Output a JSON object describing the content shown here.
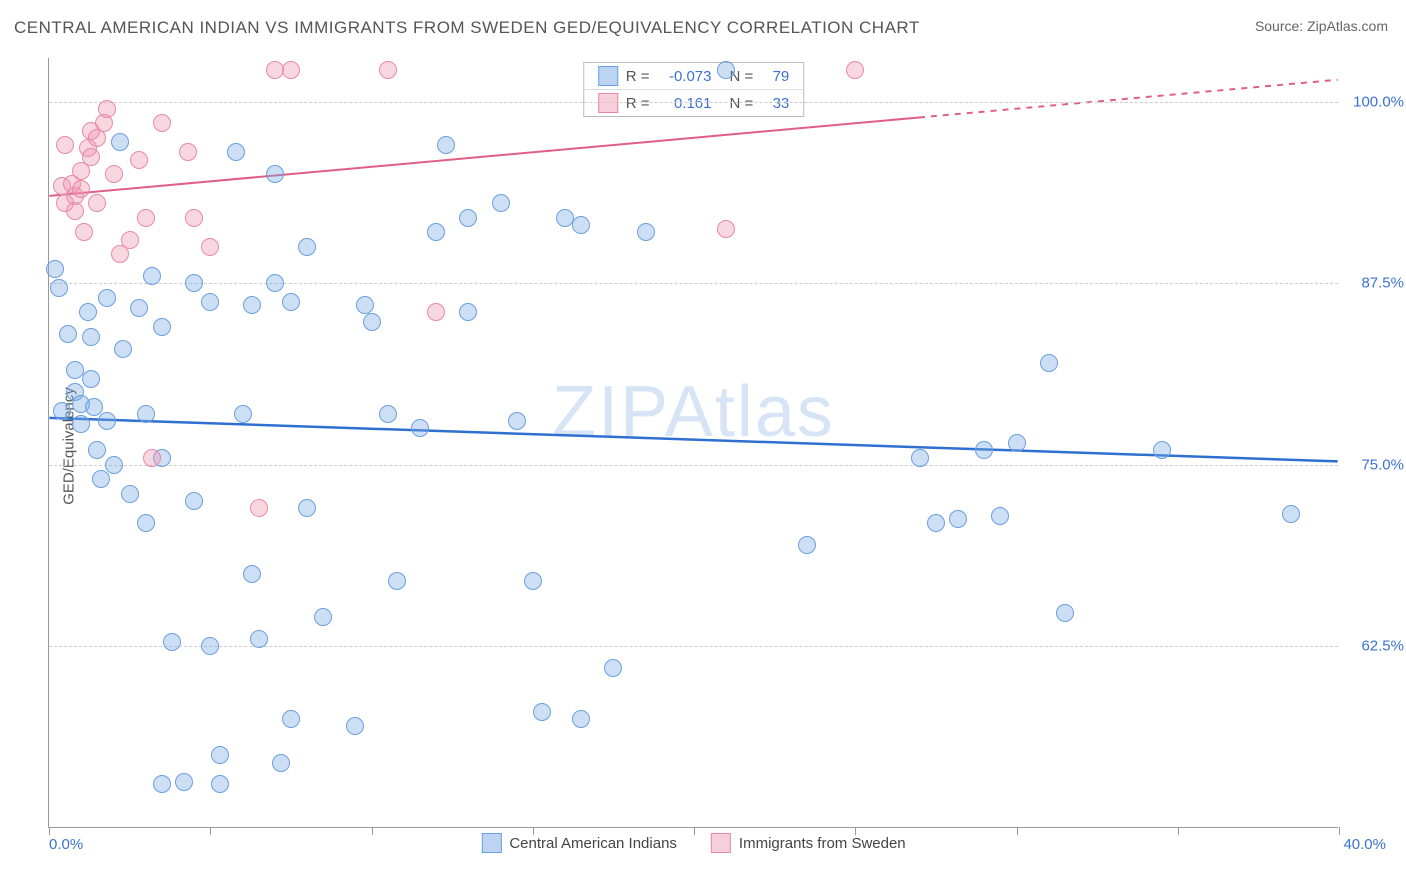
{
  "title": "CENTRAL AMERICAN INDIAN VS IMMIGRANTS FROM SWEDEN GED/EQUIVALENCY CORRELATION CHART",
  "source_label": "Source: ",
  "source_value": "ZipAtlas.com",
  "ylabel": "GED/Equivalency",
  "watermark": "ZIPAtlas",
  "chart": {
    "type": "scatter",
    "xlim": [
      0,
      40
    ],
    "ylim": [
      50,
      103
    ],
    "xtick_positions": [
      0,
      5,
      10,
      15,
      20,
      25,
      30,
      35,
      40
    ],
    "xtick_labels": {
      "0": "0.0%",
      "40": "40.0%"
    },
    "ytick_positions": [
      62.5,
      75,
      87.5,
      100
    ],
    "ytick_labels": [
      "62.5%",
      "75.0%",
      "87.5%",
      "100.0%"
    ],
    "grid_color": "#cccccc",
    "background_color": "#ffffff",
    "point_radius": 9,
    "point_stroke_width": 1.2,
    "label_fontsize": 15,
    "title_fontsize": 17
  },
  "series": [
    {
      "name": "Central American Indians",
      "color_fill": "rgba(120,170,230,0.38)",
      "color_stroke": "#6b9fe0",
      "swatch_fill": "#bad4f2",
      "swatch_border": "#6b9fe0",
      "R": "-0.073",
      "N": "79",
      "trend": {
        "x1": 0,
        "y1": 78.2,
        "x2": 40,
        "y2": 75.2,
        "color": "#2f6fd0",
        "width": 2.5,
        "dash_from_x": 40
      },
      "points": [
        [
          0.2,
          88.5
        ],
        [
          0.3,
          87.2
        ],
        [
          0.6,
          84.0
        ],
        [
          0.8,
          81.5
        ],
        [
          0.8,
          80.0
        ],
        [
          1.0,
          79.2
        ],
        [
          1.0,
          77.8
        ],
        [
          1.2,
          85.5
        ],
        [
          1.3,
          83.8
        ],
        [
          1.3,
          80.9
        ],
        [
          1.4,
          79.0
        ],
        [
          1.5,
          76.0
        ],
        [
          1.6,
          74.0
        ],
        [
          1.8,
          86.5
        ],
        [
          1.8,
          78.0
        ],
        [
          2.0,
          75.0
        ],
        [
          2.2,
          97.2
        ],
        [
          2.3,
          83.0
        ],
        [
          2.5,
          73.0
        ],
        [
          2.8,
          85.8
        ],
        [
          3.0,
          78.5
        ],
        [
          3.0,
          71.0
        ],
        [
          3.2,
          88.0
        ],
        [
          3.5,
          84.5
        ],
        [
          3.5,
          75.5
        ],
        [
          3.5,
          53.0
        ],
        [
          3.8,
          62.8
        ],
        [
          4.2,
          53.2
        ],
        [
          4.5,
          87.5
        ],
        [
          4.5,
          72.5
        ],
        [
          5.0,
          86.2
        ],
        [
          5.0,
          62.5
        ],
        [
          5.3,
          55.0
        ],
        [
          5.3,
          53.0
        ],
        [
          5.8,
          96.5
        ],
        [
          6.0,
          78.5
        ],
        [
          6.3,
          86.0
        ],
        [
          6.3,
          67.5
        ],
        [
          6.5,
          63.0
        ],
        [
          7.0,
          95.0
        ],
        [
          7.0,
          87.5
        ],
        [
          7.2,
          54.5
        ],
        [
          7.5,
          86.2
        ],
        [
          7.5,
          57.5
        ],
        [
          8.0,
          90.0
        ],
        [
          8.0,
          72.0
        ],
        [
          8.5,
          64.5
        ],
        [
          9.5,
          57.0
        ],
        [
          9.8,
          86.0
        ],
        [
          10.0,
          84.8
        ],
        [
          10.5,
          78.5
        ],
        [
          10.8,
          67.0
        ],
        [
          11.5,
          77.5
        ],
        [
          12.0,
          91.0
        ],
        [
          12.3,
          97.0
        ],
        [
          13.0,
          85.5
        ],
        [
          13.0,
          92.0
        ],
        [
          14.0,
          93.0
        ],
        [
          14.5,
          78.0
        ],
        [
          15.0,
          67.0
        ],
        [
          15.3,
          58.0
        ],
        [
          16.0,
          92.0
        ],
        [
          16.5,
          91.5
        ],
        [
          16.5,
          57.5
        ],
        [
          17.5,
          61.0
        ],
        [
          18.5,
          91.0
        ],
        [
          21.0,
          102.2
        ],
        [
          23.5,
          69.5
        ],
        [
          27.0,
          75.5
        ],
        [
          27.5,
          71.0
        ],
        [
          28.2,
          71.3
        ],
        [
          29.0,
          76.0
        ],
        [
          29.5,
          71.5
        ],
        [
          30.0,
          76.5
        ],
        [
          31.0,
          82.0
        ],
        [
          31.5,
          64.8
        ],
        [
          34.5,
          76.0
        ],
        [
          38.5,
          71.6
        ],
        [
          0.4,
          78.7
        ]
      ]
    },
    {
      "name": "Immigrants from Sweden",
      "color_fill": "rgba(240,150,175,0.38)",
      "color_stroke": "#e88aa6",
      "swatch_fill": "#f7cfda",
      "swatch_border": "#e88aa6",
      "R": "0.161",
      "N": "33",
      "trend": {
        "x1": 0,
        "y1": 93.5,
        "x2": 40,
        "y2": 101.5,
        "color": "#e05e87",
        "width": 2,
        "dash_from_x": 27
      },
      "points": [
        [
          0.4,
          94.2
        ],
        [
          0.5,
          97.0
        ],
        [
          0.5,
          93.0
        ],
        [
          0.7,
          94.3
        ],
        [
          0.8,
          93.5
        ],
        [
          0.8,
          92.5
        ],
        [
          1.0,
          95.2
        ],
        [
          1.0,
          94.0
        ],
        [
          1.1,
          91.0
        ],
        [
          1.2,
          96.8
        ],
        [
          1.3,
          98.0
        ],
        [
          1.3,
          96.2
        ],
        [
          1.5,
          97.5
        ],
        [
          1.5,
          93.0
        ],
        [
          1.7,
          98.5
        ],
        [
          1.8,
          99.5
        ],
        [
          2.0,
          95.0
        ],
        [
          2.2,
          89.5
        ],
        [
          2.5,
          90.5
        ],
        [
          2.8,
          96.0
        ],
        [
          3.0,
          92.0
        ],
        [
          3.2,
          75.5
        ],
        [
          3.5,
          98.5
        ],
        [
          4.3,
          96.5
        ],
        [
          4.5,
          92.0
        ],
        [
          5.0,
          90.0
        ],
        [
          6.5,
          72.0
        ],
        [
          7.0,
          102.2
        ],
        [
          7.5,
          102.2
        ],
        [
          10.5,
          102.2
        ],
        [
          12.0,
          85.5
        ],
        [
          21.0,
          91.2
        ],
        [
          25.0,
          102.2
        ]
      ]
    }
  ],
  "legend": {
    "r_label": "R =",
    "n_label": "N ="
  }
}
